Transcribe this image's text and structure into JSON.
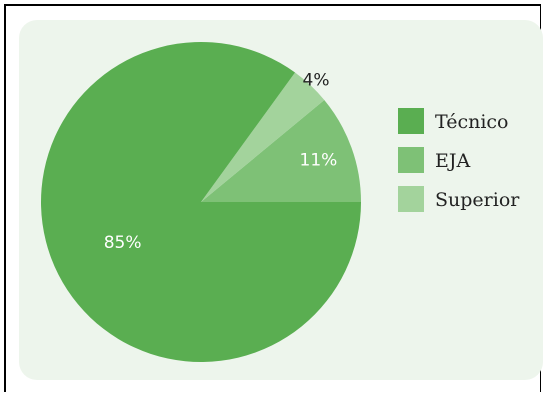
{
  "chart_data": {
    "type": "pie",
    "categories": [
      "Técnico",
      "EJA",
      "Superior"
    ],
    "values": [
      85,
      11,
      4
    ],
    "value_labels": [
      "85%",
      "11%",
      "4%"
    ],
    "colors": [
      "#5aae51",
      "#7ec176",
      "#a3d39c"
    ],
    "label_colors": [
      "#ffffff",
      "#ffffff",
      "#222222"
    ],
    "legend_position": "right",
    "start_angle_deg": 0,
    "direction": "counterclockwise",
    "legend": [
      {
        "label": "Técnico",
        "color": "#5aae51"
      },
      {
        "label": "EJA",
        "color": "#7ec176"
      },
      {
        "label": "Superior",
        "color": "#a3d39c"
      }
    ]
  }
}
